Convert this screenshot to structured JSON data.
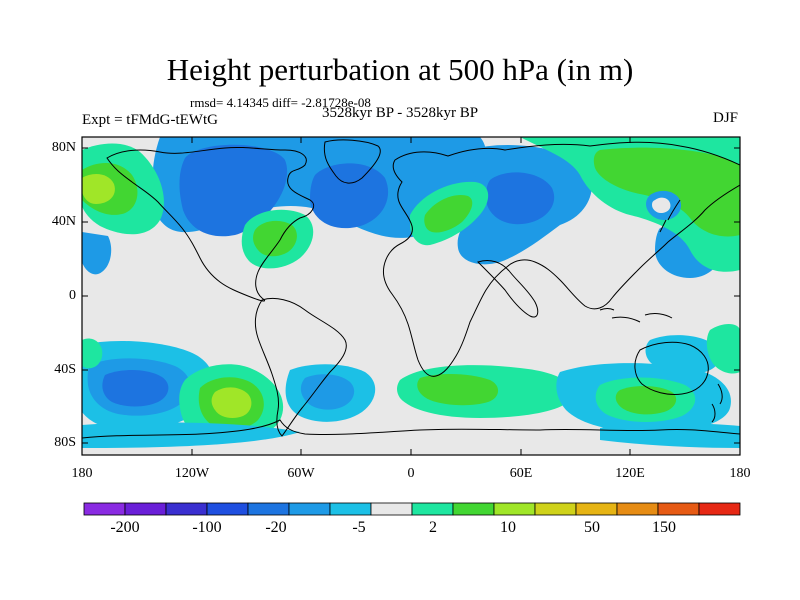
{
  "map": {
    "title": "Height perturbation at 500 hPa (in m)",
    "stats": "rmsd= 4.14345 diff= -2.81728e-08",
    "experiment": "Expt = tFMdG-tEWtG",
    "period": "3528kyr BP - 3528kyr BP",
    "season": "DJF",
    "lat_labels": [
      "80N",
      "40N",
      "0",
      "40S",
      "80S"
    ],
    "lon_labels": [
      "180",
      "120W",
      "60W",
      "0",
      "60E",
      "120E",
      "180"
    ]
  },
  "colorbar": {
    "colors": [
      "#8a2be2",
      "#6a1fd8",
      "#3a2fd0",
      "#1f4fe0",
      "#1d74e0",
      "#1e9ae6",
      "#1cc0e6",
      "#e8e8e8",
      "#1ee6a0",
      "#42d632",
      "#a0e628",
      "#cfd21a",
      "#e6b414",
      "#e68c14",
      "#e65a14",
      "#e62814"
    ],
    "labels": [
      "-200",
      "-100",
      "-20",
      "-5",
      "2",
      "10",
      "50",
      "150"
    ]
  }
}
